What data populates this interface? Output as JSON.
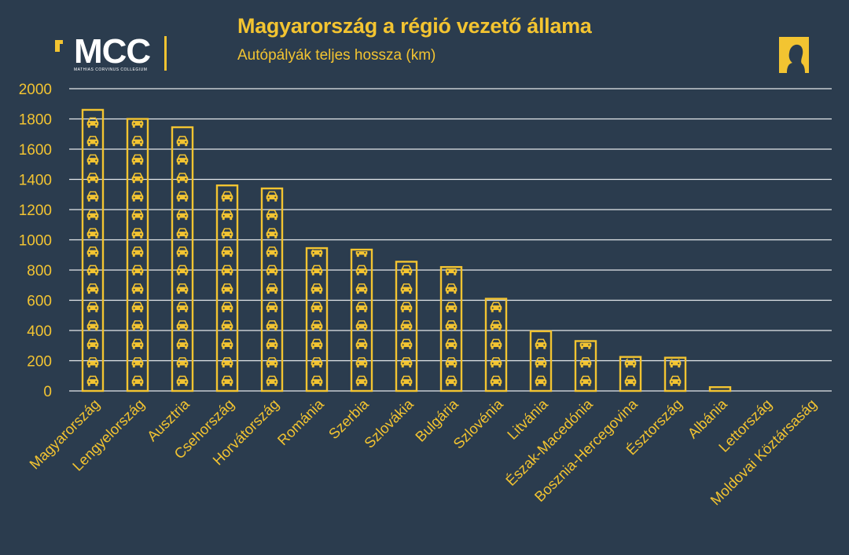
{
  "header": {
    "title": "Magyarország a régió vezető állama",
    "subtitle": "Autópályák teljes hossza (km)"
  },
  "logo": {
    "text": "MCC",
    "subtext": "MATHIAS CORVINUS COLLEGIUM"
  },
  "colors": {
    "background": "#2b3c4e",
    "accent": "#f3c431",
    "grid": "#e6e9ec"
  },
  "icons": {
    "bar_fill": "car-icon",
    "corner": "portrait-icon"
  },
  "chart_data": {
    "type": "bar",
    "categories": [
      "Magyarország",
      "Lengyelország",
      "Ausztria",
      "Csehország",
      "Horvátország",
      "Románia",
      "Szerbia",
      "Szlovákia",
      "Bulgária",
      "Szlovénia",
      "Litvánia",
      "Észak-Macedónia",
      "Bosznia-Hercegovina",
      "Észtország",
      "Albánia",
      "Lettország",
      "Moldovai Köztársaság"
    ],
    "values": [
      1860,
      1800,
      1745,
      1360,
      1340,
      945,
      935,
      855,
      820,
      610,
      395,
      330,
      225,
      220,
      25,
      0,
      0
    ],
    "title": "Autópályák teljes hossza (km)",
    "xlabel": "",
    "ylabel": "",
    "ylim": [
      0,
      2000
    ],
    "yticks": [
      0,
      200,
      400,
      600,
      800,
      1000,
      1200,
      1400,
      1600,
      1800,
      2000
    ],
    "grid": true,
    "legend": "none"
  }
}
